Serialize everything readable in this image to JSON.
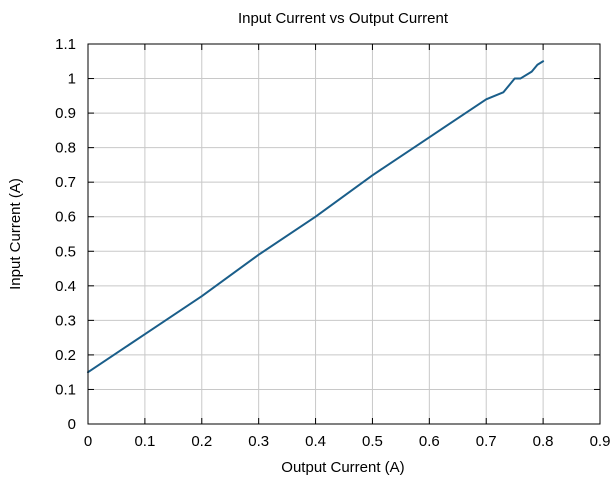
{
  "chart_data": {
    "type": "line",
    "title": "Input Current vs Output Current",
    "xlabel": "Output Current (A)",
    "ylabel": "Input Current (A)",
    "xlim": [
      0,
      0.9
    ],
    "ylim": [
      0,
      1.1
    ],
    "xticks": [
      "0",
      "0.1",
      "0.2",
      "0.3",
      "0.4",
      "0.5",
      "0.6",
      "0.7",
      "0.8",
      "0.9"
    ],
    "yticks": [
      "0",
      "0.1",
      "0.2",
      "0.3",
      "0.4",
      "0.5",
      "0.6",
      "0.7",
      "0.8",
      "0.9",
      "1",
      "1.1"
    ],
    "grid": true,
    "series": [
      {
        "color": "#1a5e8a",
        "x": [
          0,
          0.1,
          0.2,
          0.3,
          0.4,
          0.5,
          0.6,
          0.7,
          0.73,
          0.75,
          0.76,
          0.78,
          0.79,
          0.8
        ],
        "y": [
          0.15,
          0.26,
          0.37,
          0.49,
          0.6,
          0.72,
          0.83,
          0.94,
          0.96,
          1.0,
          1.0,
          1.02,
          1.04,
          1.05
        ]
      }
    ]
  }
}
